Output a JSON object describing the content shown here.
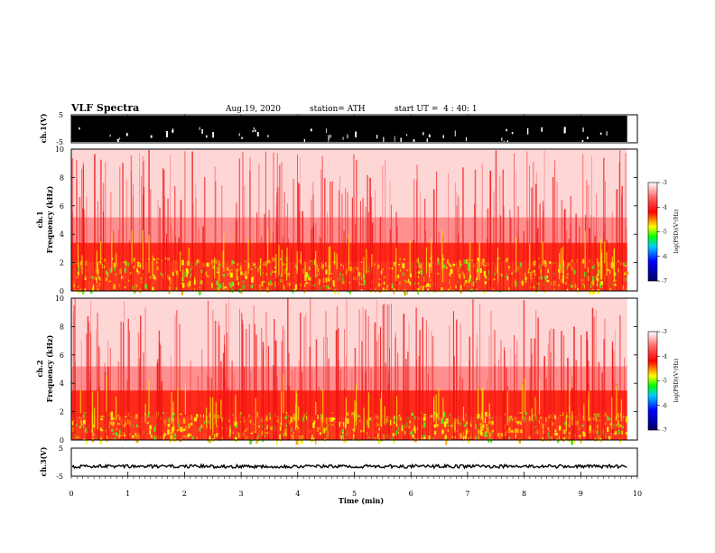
{
  "header": {
    "title": "VLF Spectra",
    "date": "Aug.19, 2020",
    "station": "station= ATH",
    "start": "start UT =  4 : 40: 1"
  },
  "chart_data": {
    "type": "heatmap",
    "x": {
      "label": "Time (min)",
      "range": [
        0,
        10
      ],
      "ticks": [
        "0",
        "1",
        "2",
        "3",
        "4",
        "5",
        "6",
        "7",
        "8",
        "9",
        "10"
      ],
      "data_end": 9.82
    },
    "panels": [
      {
        "kind": "waveform",
        "ylabel": "ch.1(V)",
        "yticks": [
          "5",
          "-5"
        ],
        "ylim": [
          -5,
          5
        ],
        "appearance": "saturated black bursts"
      },
      {
        "kind": "spectrogram",
        "ylabel_line1": "ch.1",
        "ylabel_line2": "Frequency (kHz)",
        "ylim": [
          0,
          10
        ],
        "yticks": [
          "0",
          "2",
          "4",
          "6",
          "8",
          "10"
        ],
        "bands_khz": [
          {
            "from": 0,
            "to": 2,
            "level": "green/yellow"
          },
          {
            "from": 2,
            "to": 3.4,
            "level": "red"
          },
          {
            "from": 3.4,
            "to": 5.2,
            "level": "light red"
          },
          {
            "from": 5.2,
            "to": 10,
            "level": "pale red"
          }
        ],
        "colorbar": {
          "label": "log(PSD)(V²/Hz)",
          "ticks": [
            "-3",
            "-4",
            "-5",
            "-6",
            "-7"
          ],
          "range": [
            -7,
            -3
          ]
        }
      },
      {
        "kind": "spectrogram",
        "ylabel_line1": "ch.2",
        "ylabel_line2": "Frequency (kHz)",
        "ylim": [
          0,
          10
        ],
        "yticks": [
          "0",
          "2",
          "4",
          "6",
          "8",
          "10"
        ],
        "bands_khz": [
          {
            "from": 0,
            "to": 1.6,
            "level": "green/yellow"
          },
          {
            "from": 1.6,
            "to": 3.5,
            "level": "red"
          },
          {
            "from": 3.5,
            "to": 5.2,
            "level": "light red"
          },
          {
            "from": 5.2,
            "to": 10,
            "level": "pale red"
          }
        ],
        "colorbar": {
          "label": "log(PSD)(V²/Hz)",
          "ticks": [
            "-3",
            "-4",
            "-5",
            "-6",
            "-7"
          ],
          "range": [
            -7,
            -3
          ]
        }
      },
      {
        "kind": "waveform",
        "ylabel": "ch.3(V)",
        "yticks": [
          "5",
          "-5"
        ],
        "ylim": [
          -5,
          5
        ],
        "appearance": "thin trace near -1.5 V"
      }
    ],
    "colors": {
      "colormap": [
        "#000066",
        "#0000ff",
        "#00ffff",
        "#00ff00",
        "#ffff00",
        "#ff0000",
        "#ffffff"
      ]
    }
  }
}
